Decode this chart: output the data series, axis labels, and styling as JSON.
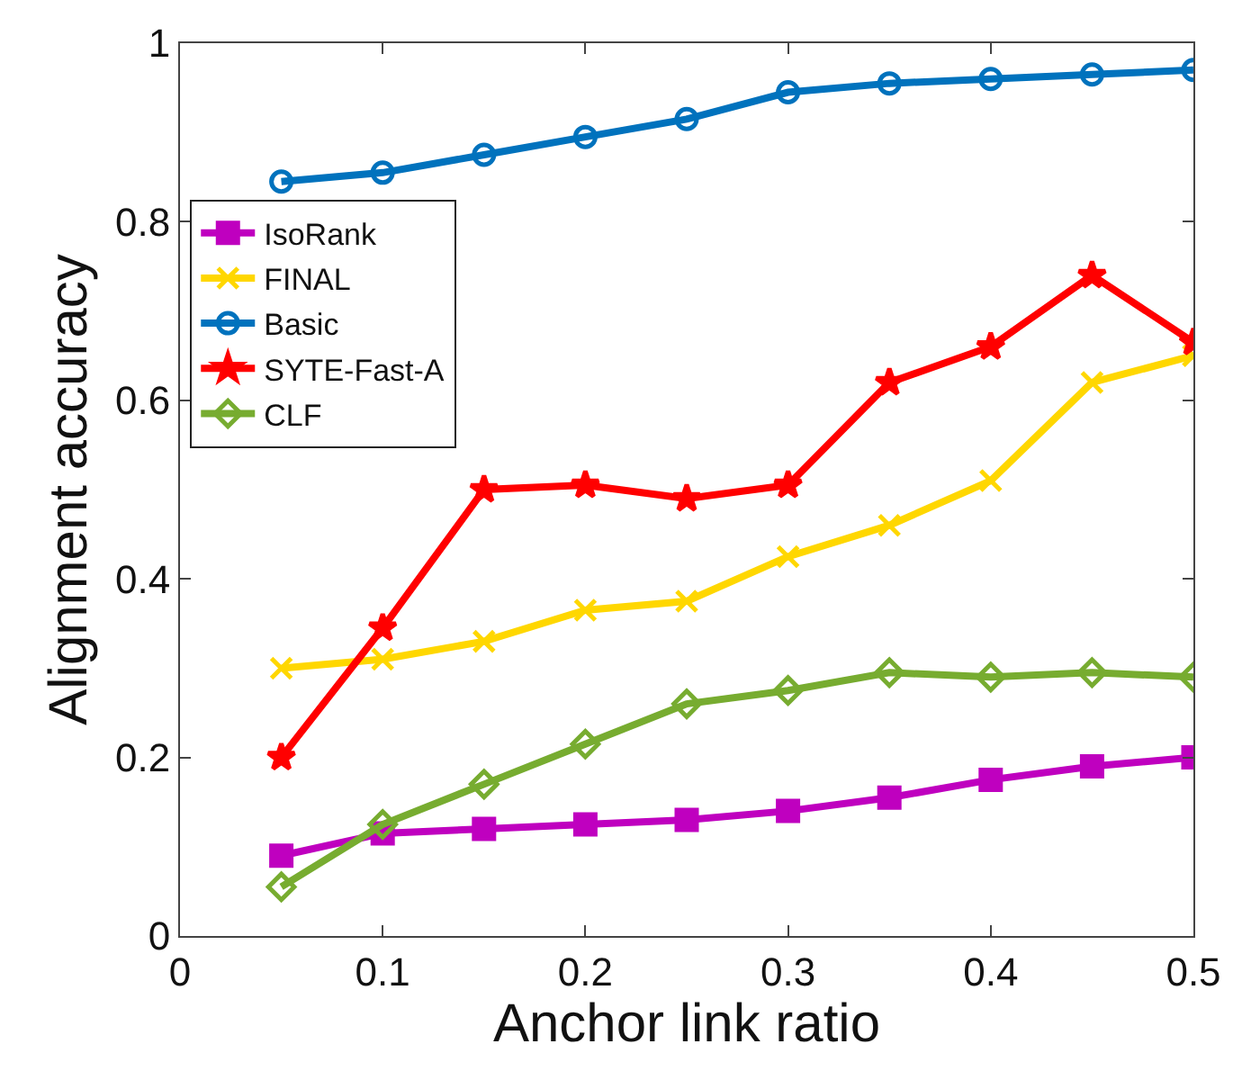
{
  "chart_data": {
    "type": "line",
    "xlabel": "Anchor link ratio",
    "ylabel": "Alignment accuracy",
    "x": [
      0.05,
      0.1,
      0.15,
      0.2,
      0.25,
      0.3,
      0.35,
      0.4,
      0.45,
      0.5
    ],
    "series": [
      {
        "name": "IsoRank",
        "color": "#bf00bf",
        "marker": "square",
        "values": [
          0.09,
          0.115,
          0.12,
          0.125,
          0.13,
          0.14,
          0.155,
          0.175,
          0.19,
          0.2
        ]
      },
      {
        "name": "FINAL",
        "color": "#ffd700",
        "marker": "cross",
        "values": [
          0.3,
          0.31,
          0.33,
          0.365,
          0.375,
          0.425,
          0.46,
          0.51,
          0.62,
          0.65
        ]
      },
      {
        "name": "Basic",
        "color": "#0072bd",
        "marker": "circle",
        "values": [
          0.845,
          0.855,
          0.875,
          0.895,
          0.915,
          0.945,
          0.955,
          0.96,
          0.965,
          0.97
        ]
      },
      {
        "name": "SYTE-Fast-A",
        "color": "#ff0000",
        "marker": "star",
        "values": [
          0.2,
          0.345,
          0.5,
          0.505,
          0.49,
          0.505,
          0.62,
          0.66,
          0.74,
          0.665
        ]
      },
      {
        "name": "CLF",
        "color": "#77ac30",
        "marker": "diamond",
        "values": [
          0.055,
          0.125,
          0.17,
          0.215,
          0.26,
          0.275,
          0.295,
          0.29,
          0.295,
          0.29
        ]
      }
    ],
    "xlim": [
      0,
      0.5
    ],
    "xticks": [
      0,
      0.1,
      0.2,
      0.3,
      0.4,
      0.5
    ],
    "ylim": [
      0,
      1
    ],
    "yticks": [
      0,
      0.2,
      0.4,
      0.6,
      0.8,
      1
    ],
    "legend": "top left"
  }
}
